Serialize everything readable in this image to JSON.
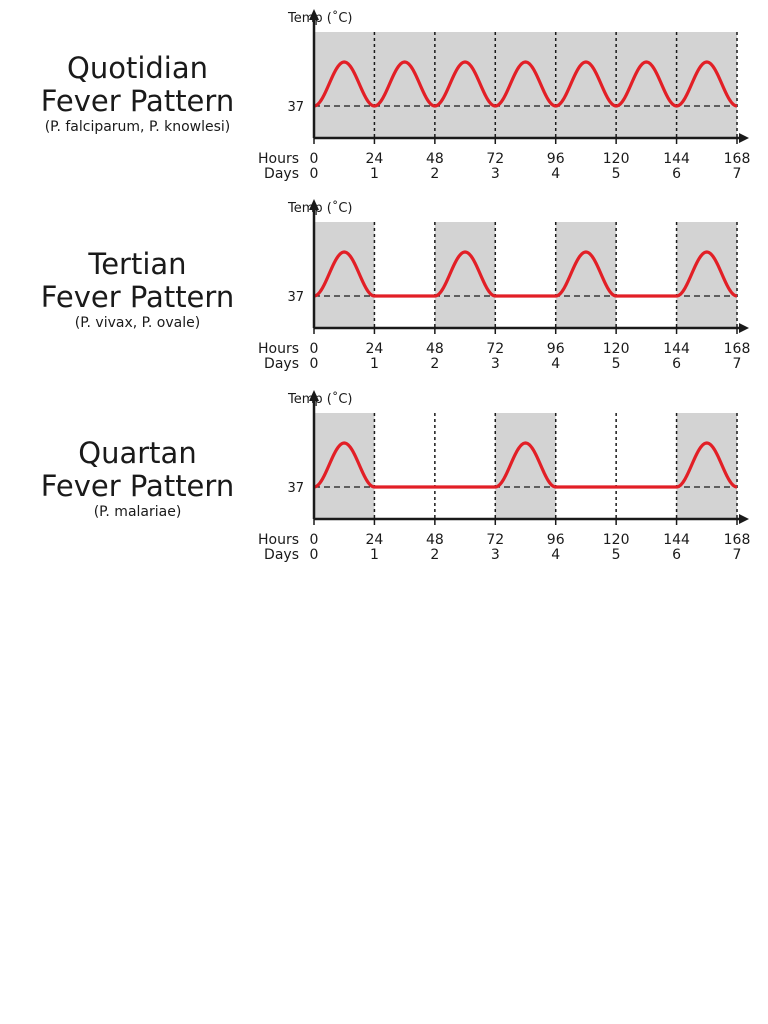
{
  "colors": {
    "shade": "#d3d3d3",
    "curve": "#e21f26",
    "axis": "#1a1a1a"
  },
  "chart_data": [
    {
      "type": "line",
      "title_line1": "Quotidian",
      "title_line2": "Fever Pattern",
      "subtitle": "(P. falciparum, P. knowlesi)",
      "ylabel": "Temp (˚C)",
      "baseline_label": "37",
      "x_row_label": "Hours",
      "x2_row_label": "Days",
      "xlim": [
        0,
        168
      ],
      "hours_ticks": [
        "0",
        "24",
        "48",
        "72",
        "96",
        "120",
        "144",
        "168"
      ],
      "days_ticks": [
        "0",
        "1",
        "2",
        "3",
        "4",
        "5",
        "6",
        "7"
      ],
      "fever_days": [
        0,
        1,
        2,
        3,
        4,
        5,
        6
      ],
      "shaded_days": [
        0,
        1,
        2,
        3,
        4,
        5,
        6
      ]
    },
    {
      "type": "line",
      "title_line1": "Tertian",
      "title_line2": "Fever Pattern",
      "subtitle": "(P. vivax, P. ovale)",
      "ylabel": "Temp (˚C)",
      "baseline_label": "37",
      "x_row_label": "Hours",
      "x2_row_label": "Days",
      "xlim": [
        0,
        168
      ],
      "hours_ticks": [
        "0",
        "24",
        "48",
        "72",
        "96",
        "120",
        "144",
        "168"
      ],
      "days_ticks": [
        "0",
        "1",
        "2",
        "3",
        "4",
        "5",
        "6",
        "7"
      ],
      "fever_days": [
        0,
        2,
        4,
        6
      ],
      "shaded_days": [
        0,
        2,
        4,
        6
      ]
    },
    {
      "type": "line",
      "title_line1": "Quartan",
      "title_line2": "Fever Pattern",
      "subtitle": "(P. malariae)",
      "ylabel": "Temp (˚C)",
      "baseline_label": "37",
      "x_row_label": "Hours",
      "x2_row_label": "Days",
      "xlim": [
        0,
        168
      ],
      "hours_ticks": [
        "0",
        "24",
        "48",
        "72",
        "96",
        "120",
        "144",
        "168"
      ],
      "days_ticks": [
        "0",
        "1",
        "2",
        "3",
        "4",
        "5",
        "6",
        "7"
      ],
      "fever_days": [
        0,
        3,
        6
      ],
      "shaded_days": [
        0,
        3,
        6
      ]
    }
  ]
}
